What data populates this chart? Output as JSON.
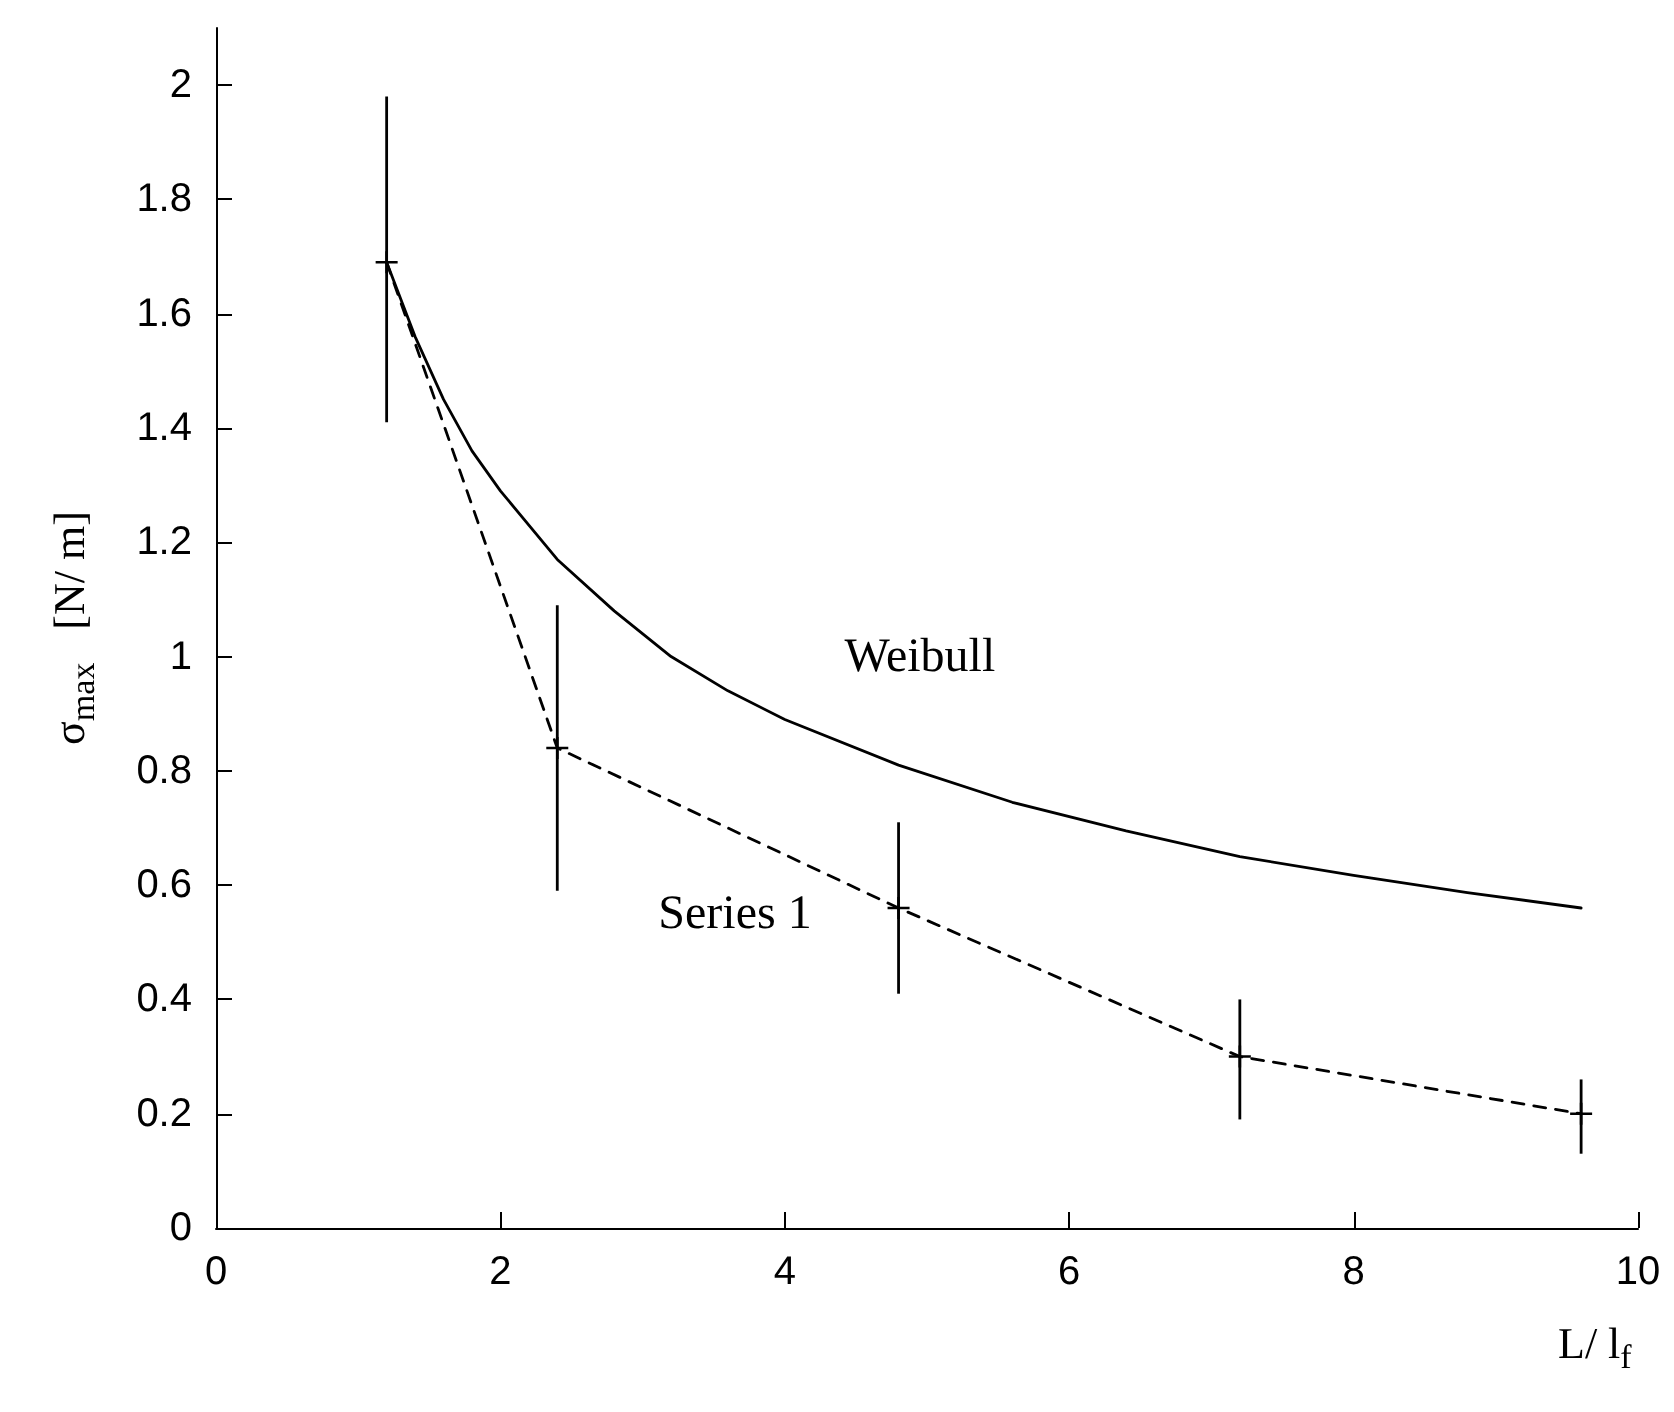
{
  "chart_data": {
    "type": "line",
    "xlabel": "L/ l$_{f}$",
    "ylabel": "σ$_{max}$   [N/ m]",
    "xlim": [
      0,
      10
    ],
    "xticks": [
      0,
      2,
      4,
      6,
      8,
      10
    ],
    "ylim": [
      0,
      2.1
    ],
    "yticks": [
      0,
      0.2,
      0.4,
      0.6,
      0.8,
      1,
      1.2,
      1.4,
      1.6,
      1.8,
      2
    ],
    "grid": false,
    "legend": false,
    "marker": "cross",
    "series": [
      {
        "name": "Weibull",
        "color": "#000000",
        "line_style": "solid",
        "marker": "none",
        "x": [
          1.2,
          1.4,
          1.6,
          1.8,
          2,
          2.4,
          2.8,
          3.2,
          3.6,
          4,
          4.8,
          5.6,
          6.4,
          7.2,
          8,
          8.8,
          9.6
        ],
        "values": [
          1.69,
          1.56,
          1.45,
          1.36,
          1.29,
          1.17,
          1.08,
          1.0,
          0.94,
          0.89,
          0.81,
          0.745,
          0.695,
          0.65,
          0.617,
          0.587,
          0.56
        ]
      },
      {
        "name": "Series 1",
        "color": "#000000",
        "line_style": "dashed",
        "x": [
          1.2,
          2.4,
          4.8,
          7.2,
          9.6
        ],
        "values": [
          1.69,
          0.84,
          0.56,
          0.3,
          0.2
        ],
        "errors": [
          [
            1.41,
            1.98
          ],
          [
            0.59,
            1.09
          ],
          [
            0.41,
            0.71
          ],
          [
            0.19,
            0.4
          ],
          [
            0.13,
            0.26
          ]
        ]
      }
    ]
  }
}
